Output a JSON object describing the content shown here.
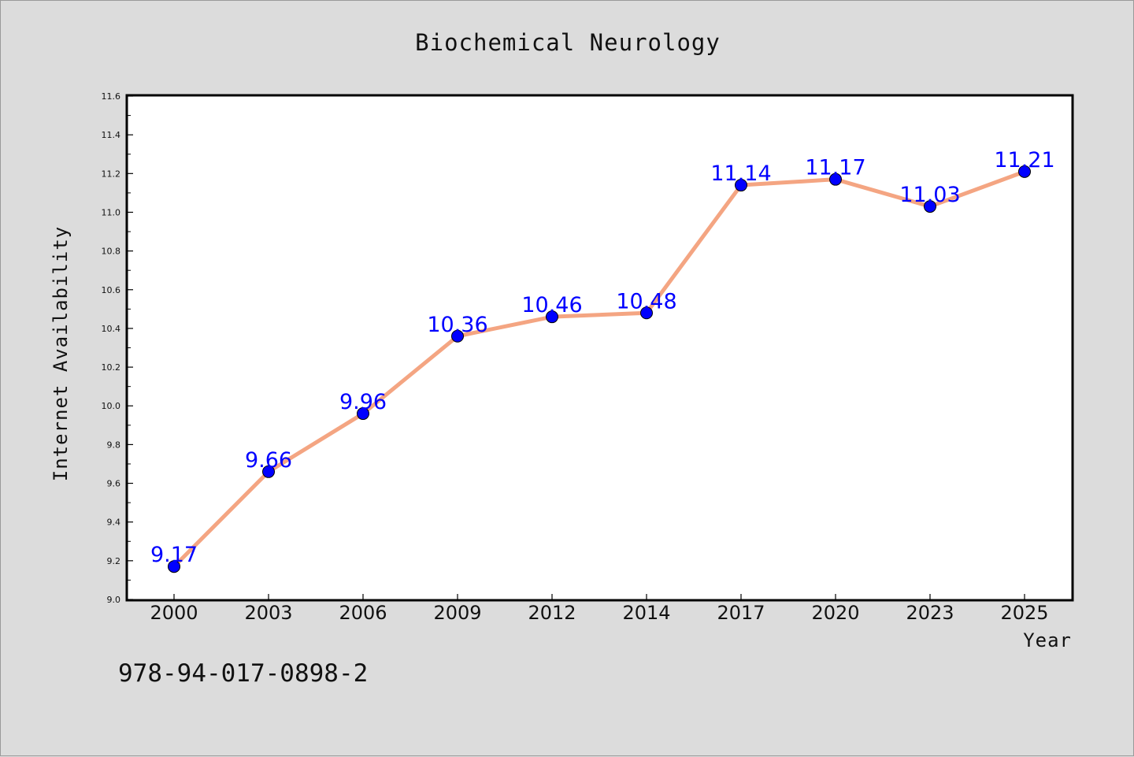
{
  "chart_data": {
    "type": "line",
    "title": "Biochemical Neurology",
    "xlabel": "Year",
    "ylabel": "Internet Availability",
    "categories": [
      "2000",
      "2003",
      "2006",
      "2009",
      "2012",
      "2014",
      "2017",
      "2020",
      "2023",
      "2025"
    ],
    "series": [
      {
        "values": [
          9.17,
          9.66,
          9.96,
          10.36,
          10.46,
          10.48,
          11.14,
          11.17,
          11.03,
          11.21
        ],
        "labels": [
          "9.17",
          "9.66",
          "9.96",
          "10.36",
          "10.46",
          "10.48",
          "11.14",
          "11.17",
          "11.03",
          "11.21"
        ]
      }
    ],
    "ylim": [
      9.0,
      11.6
    ],
    "yticks": [
      "9.0",
      "9.2",
      "9.4",
      "9.6",
      "9.8",
      "10.0",
      "10.2",
      "10.4",
      "10.6",
      "10.8",
      "11.0",
      "11.2",
      "11.4",
      "11.6"
    ],
    "grid": false,
    "legend": "none",
    "colors": {
      "line": "#f4a582",
      "marker": "#0000ff",
      "data_label": "#0000ff",
      "background": "#dcdcdc",
      "plot_background": "#ffffff"
    }
  },
  "footnote": "978-94-017-0898-2"
}
